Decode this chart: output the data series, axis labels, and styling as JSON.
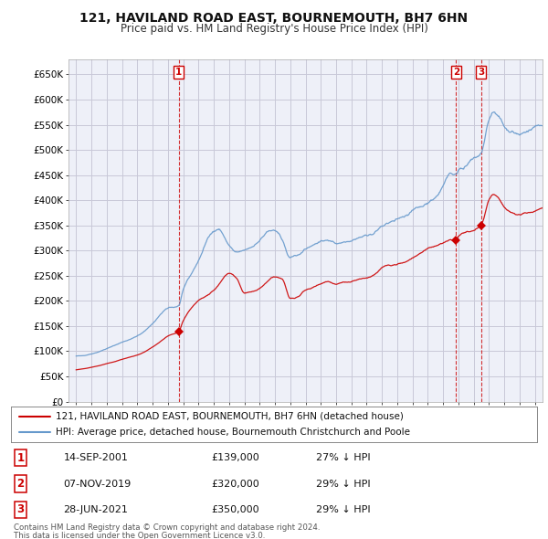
{
  "title": "121, HAVILAND ROAD EAST, BOURNEMOUTH, BH7 6HN",
  "subtitle": "Price paid vs. HM Land Registry's House Price Index (HPI)",
  "legend_line1": "121, HAVILAND ROAD EAST, BOURNEMOUTH, BH7 6HN (detached house)",
  "legend_line2": "HPI: Average price, detached house, Bournemouth Christchurch and Poole",
  "footer1": "Contains HM Land Registry data © Crown copyright and database right 2024.",
  "footer2": "This data is licensed under the Open Government Licence v3.0.",
  "sale_points": [
    {
      "label": "1",
      "date": "14-SEP-2001",
      "price": 139000,
      "pct": "27% ↓ HPI",
      "x": 2001.71
    },
    {
      "label": "2",
      "date": "07-NOV-2019",
      "price": 320000,
      "pct": "29% ↓ HPI",
      "x": 2019.85
    },
    {
      "label": "3",
      "date": "28-JUN-2021",
      "price": 350000,
      "pct": "29% ↓ HPI",
      "x": 2021.49
    }
  ],
  "hpi_color": "#6699cc",
  "sold_color": "#cc0000",
  "grid_color": "#c8c8d8",
  "background_color": "#ffffff",
  "plot_bg_color": "#eef0f8",
  "ylim": [
    0,
    680000
  ],
  "yticks": [
    0,
    50000,
    100000,
    150000,
    200000,
    250000,
    300000,
    350000,
    400000,
    450000,
    500000,
    550000,
    600000,
    650000
  ],
  "xlim_start": 1994.5,
  "xlim_end": 2025.5
}
